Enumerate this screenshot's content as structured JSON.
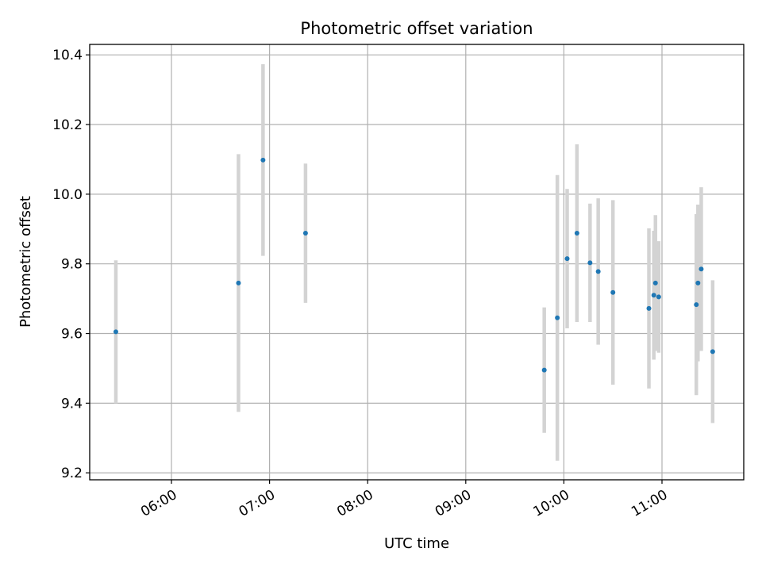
{
  "chart_data": {
    "type": "scatter",
    "title": "Photometric offset variation",
    "xlabel": "UTC time",
    "ylabel": "Photometric offset",
    "xlim": [
      "05:10",
      "11:50"
    ],
    "ylim": [
      9.18,
      10.43
    ],
    "grid": true,
    "x_ticks": [
      "06:00",
      "07:00",
      "08:00",
      "09:00",
      "10:00",
      "11:00"
    ],
    "y_ticks": [
      "9.2",
      "9.4",
      "9.6",
      "9.8",
      "10.0",
      "10.2",
      "10.4"
    ],
    "colors": {
      "point": "#1f77b4",
      "errorbar": "#d3d3d3",
      "grid": "#b0b0b0"
    },
    "points": [
      {
        "x": "05:26",
        "y": 9.605,
        "err": 0.205
      },
      {
        "x": "06:41",
        "y": 9.745,
        "err": 0.37
      },
      {
        "x": "06:56",
        "y": 10.098,
        "err": 0.275
      },
      {
        "x": "07:22",
        "y": 9.888,
        "err": 0.2
      },
      {
        "x": "09:48",
        "y": 9.495,
        "err": 0.18
      },
      {
        "x": "09:56",
        "y": 9.645,
        "err": 0.41
      },
      {
        "x": "10:02",
        "y": 9.815,
        "err": 0.2
      },
      {
        "x": "10:08",
        "y": 9.888,
        "err": 0.255
      },
      {
        "x": "10:16",
        "y": 9.803,
        "err": 0.17
      },
      {
        "x": "10:21",
        "y": 9.778,
        "err": 0.21
      },
      {
        "x": "10:30",
        "y": 9.718,
        "err": 0.265
      },
      {
        "x": "10:52",
        "y": 9.672,
        "err": 0.23
      },
      {
        "x": "10:55",
        "y": 9.71,
        "err": 0.185
      },
      {
        "x": "10:56",
        "y": 9.745,
        "err": 0.195
      },
      {
        "x": "10:58",
        "y": 9.705,
        "err": 0.16
      },
      {
        "x": "11:21",
        "y": 9.683,
        "err": 0.26
      },
      {
        "x": "11:22",
        "y": 9.745,
        "err": 0.225
      },
      {
        "x": "11:24",
        "y": 9.785,
        "err": 0.235
      },
      {
        "x": "11:31",
        "y": 9.548,
        "err": 0.205
      }
    ]
  }
}
